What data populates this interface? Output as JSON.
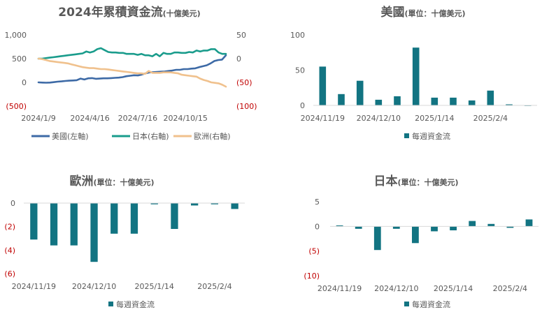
{
  "colors": {
    "us": "#3d6aa6",
    "japan": "#1a9c8c",
    "europe": "#f0c18d",
    "bar": "#127482",
    "axis": "#d9d9d9",
    "text": "#595959",
    "neg_text": "#c00000"
  },
  "chart_data": [
    {
      "type": "line",
      "title": "2024年累積資金流",
      "title_unit": "(十億美元)",
      "left_axis": {
        "ticks": [
          1000,
          500,
          0,
          -500
        ],
        "tick_labels": [
          "1,000",
          "500",
          "0",
          "(500)"
        ],
        "ylim": [
          -500,
          1000
        ]
      },
      "right_axis": {
        "ticks": [
          50,
          0,
          -50,
          -100
        ],
        "tick_labels": [
          "50",
          "0",
          "(50)",
          "(100)"
        ],
        "ylim": [
          -100,
          50
        ]
      },
      "x_tick_labels": [
        "2024/1/9",
        "2024/4/16",
        "2024/7/16",
        "2024/10/15"
      ],
      "x_tick_positions": [
        0,
        14,
        27,
        40
      ],
      "series": [
        {
          "name": "美國(左軸)",
          "axis": "left",
          "color_key": "us",
          "values": [
            0,
            -5,
            -8,
            -5,
            5,
            15,
            20,
            30,
            35,
            40,
            45,
            80,
            60,
            85,
            90,
            75,
            80,
            85,
            85,
            90,
            95,
            100,
            110,
            130,
            140,
            150,
            145,
            165,
            190,
            210,
            215,
            220,
            225,
            230,
            240,
            250,
            265,
            265,
            280,
            280,
            290,
            295,
            320,
            340,
            360,
            400,
            450,
            470,
            480,
            570
          ]
        },
        {
          "name": "日本(右軸)",
          "axis": "right",
          "color_key": "japan",
          "values": [
            0,
            0,
            1,
            2,
            3,
            4,
            5,
            6,
            7,
            8,
            9,
            10,
            11,
            15,
            13,
            15,
            20,
            22,
            18,
            14,
            13,
            13,
            12,
            12,
            10,
            10,
            10,
            8,
            10,
            7,
            7,
            5,
            10,
            5,
            12,
            10,
            10,
            13,
            13,
            12,
            12,
            14,
            13,
            17,
            15,
            17,
            17,
            20,
            20,
            13,
            10,
            10
          ]
        },
        {
          "name": "歐洲(右軸)",
          "axis": "right",
          "color_key": "europe",
          "values": [
            0,
            -1,
            -3,
            -5,
            -6,
            -7,
            -8,
            -9,
            -10,
            -12,
            -14,
            -16,
            -18,
            -19,
            -20,
            -20,
            -21,
            -22,
            -22,
            -23,
            -24,
            -25,
            -26,
            -27,
            -28,
            -29,
            -30,
            -31,
            -31,
            -32,
            -26,
            -30,
            -30,
            -30,
            -29,
            -29,
            -29,
            -30,
            -31,
            -34,
            -35,
            -36,
            -37,
            -38,
            -42,
            -45,
            -47,
            -50,
            -51,
            -52,
            -55,
            -59
          ]
        }
      ]
    },
    {
      "type": "bar",
      "title": "美國",
      "title_unit": "(單位：十億美元)",
      "ylim": [
        0,
        100
      ],
      "ticks": [
        100,
        50,
        0
      ],
      "tick_labels": [
        "100",
        "50",
        "0"
      ],
      "x_tick_labels": [
        "2024/11/19",
        "2024/12/10",
        "2025/1/14",
        "2025/2/4"
      ],
      "x_tick_positions": [
        0,
        3,
        6,
        9
      ],
      "categories": [
        "1",
        "2",
        "3",
        "4",
        "5",
        "6",
        "7",
        "8",
        "9",
        "10",
        "11",
        "12"
      ],
      "values": [
        55,
        16,
        35,
        8,
        13,
        82,
        11,
        11,
        7,
        21,
        1.5,
        0
      ],
      "legend": "每週資金流"
    },
    {
      "type": "bar",
      "title": "歐洲",
      "title_unit": "(單位：十億美元)",
      "ylim": [
        -6,
        0
      ],
      "ticks": [
        0,
        -2,
        -4,
        -6
      ],
      "tick_labels": [
        "0",
        "(2)",
        "(4)",
        "(6)"
      ],
      "x_tick_labels": [
        "2024/11/19",
        "2024/12/10",
        "2025/1/14",
        "2025/2/4"
      ],
      "x_tick_positions": [
        0,
        3,
        6,
        9
      ],
      "categories": [
        "1",
        "2",
        "3",
        "4",
        "5",
        "6",
        "7",
        "8",
        "9",
        "10",
        "11"
      ],
      "values": [
        -3.1,
        -3.6,
        -3.6,
        -5.0,
        -2.6,
        -2.6,
        -0.1,
        -2.2,
        -0.2,
        -0.1,
        -0.5
      ],
      "legend": "每週資金流"
    },
    {
      "type": "bar",
      "title": "日本",
      "title_unit": "(單位：十億美元)",
      "ylim": [
        -10,
        5
      ],
      "ticks": [
        5,
        0,
        -5,
        -10
      ],
      "tick_labels": [
        "5",
        "0",
        "(5)",
        "(10)"
      ],
      "x_tick_labels": [
        "2024/11/19",
        "2024/12/10",
        "2025/1/14",
        "2025/2/4"
      ],
      "x_tick_positions": [
        0,
        3,
        6,
        9
      ],
      "categories": [
        "1",
        "2",
        "3",
        "4",
        "5",
        "6",
        "7",
        "8",
        "9",
        "10",
        "11"
      ],
      "values": [
        0.2,
        -0.5,
        -4.8,
        -0.5,
        -3.4,
        -1.0,
        -0.8,
        1.1,
        0.5,
        -0.3,
        1.4
      ],
      "legend": "每週資金流"
    }
  ]
}
